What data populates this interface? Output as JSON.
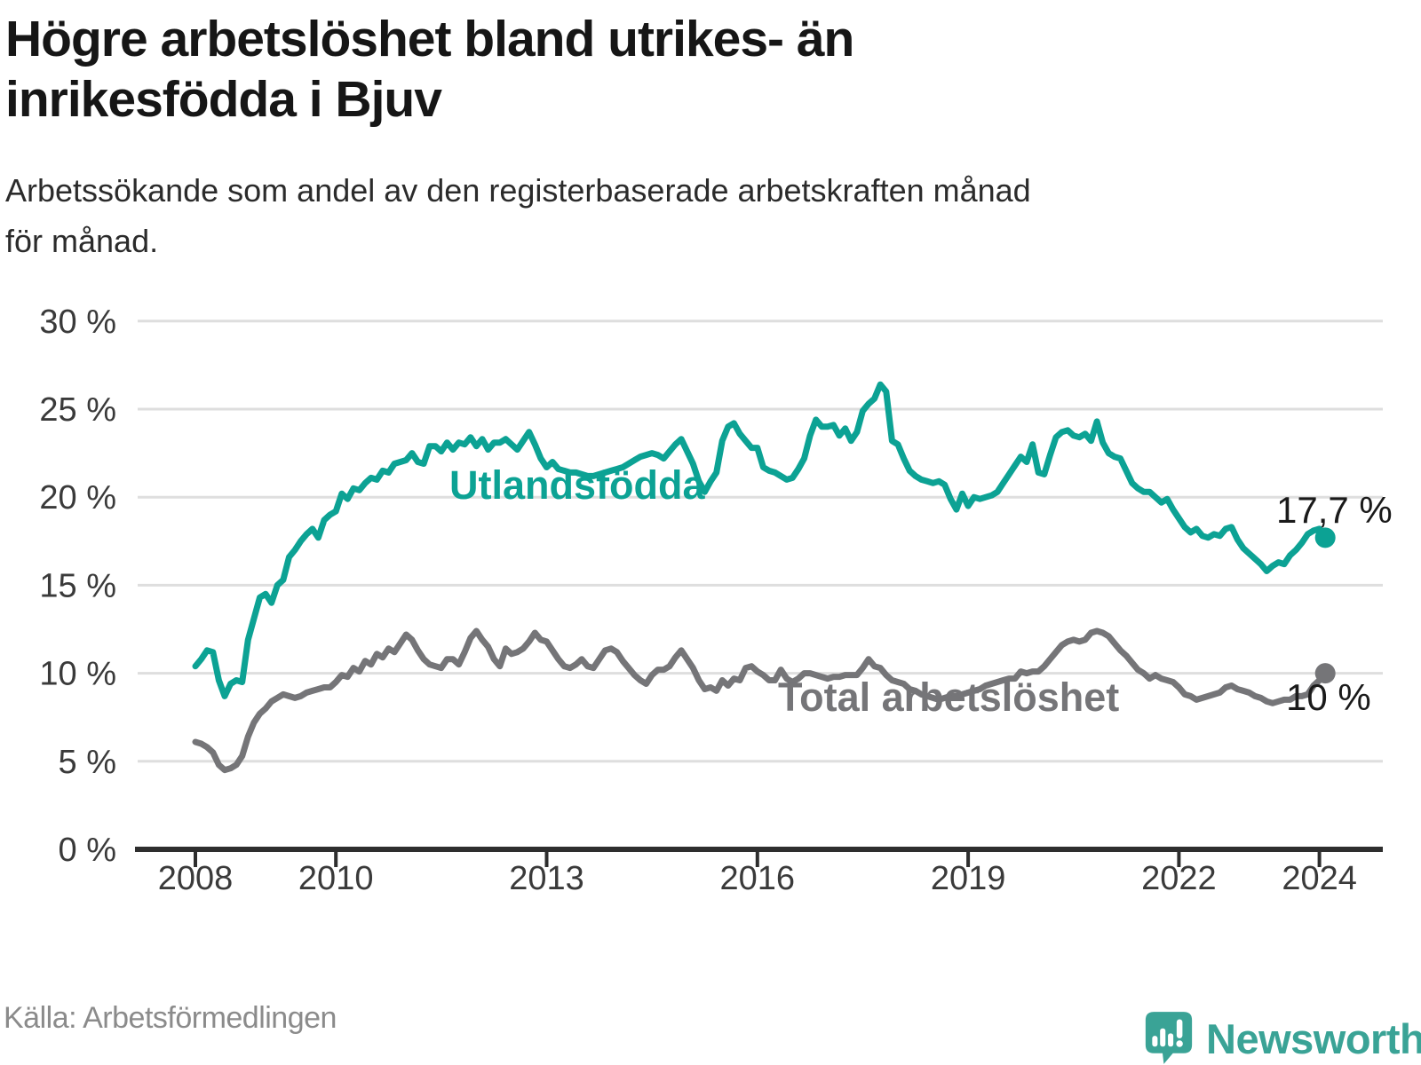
{
  "title": {
    "full": "Högre arbetslöshet bland utrikes- än inrikesfödda i Bjuv",
    "lines": [
      "Högre arbetslöshet bland utrikes- än",
      "inrikesfödda i Bjuv"
    ]
  },
  "subtitle": {
    "full": "Arbetssökande som andel av den registerbaserade arbetskraften månad för månad.",
    "lines": [
      "Arbetssökande som andel av den registerbaserade arbetskraften månad",
      "för månad."
    ]
  },
  "source": "Källa: Arbetsförmedlingen",
  "brand": {
    "name": "Newsworthy",
    "icon": "newsworthy-bubble-barchart-icon",
    "color": "#3aa396"
  },
  "colors": {
    "series_utlandsfodda": "#0ca294",
    "series_total": "#757578",
    "gridline": "#dedede",
    "axis": "#2e2e2e",
    "tick_label": "#3a3a3a",
    "value_label": "#1a1a1a",
    "title_text": "#161616",
    "source_text": "#8b8b8b"
  },
  "chart_data": {
    "type": "line",
    "title": "Högre arbetslöshet bland utrikes- än inrikesfödda i Bjuv",
    "xlabel": "",
    "ylabel": "Arbetssökande som andel av den registerbaserade arbetskraften",
    "x_unit": "month",
    "x_range": [
      "2008-01",
      "2024-02"
    ],
    "ylim": [
      0,
      30
    ],
    "grid": true,
    "legend_position": "inline",
    "y_ticks": [
      {
        "value": 0,
        "label": "0 %"
      },
      {
        "value": 5,
        "label": "5 %"
      },
      {
        "value": 10,
        "label": "10 %"
      },
      {
        "value": 15,
        "label": "15 %"
      },
      {
        "value": 20,
        "label": "20 %"
      },
      {
        "value": 25,
        "label": "25 %"
      },
      {
        "value": 30,
        "label": "30 %"
      }
    ],
    "x_ticks": [
      {
        "year": 2008,
        "label": "2008"
      },
      {
        "year": 2010,
        "label": "2010"
      },
      {
        "year": 2013,
        "label": "2013"
      },
      {
        "year": 2016,
        "label": "2016"
      },
      {
        "year": 2019,
        "label": "2019"
      },
      {
        "year": 2022,
        "label": "2022"
      },
      {
        "year": 2024,
        "label": "2024"
      }
    ],
    "series": [
      {
        "name": "Utlandsfödda",
        "end_label": "17,7 %",
        "end_value": 17.7,
        "color": "#0ca294",
        "values": [
          10.4,
          10.8,
          11.3,
          11.2,
          9.6,
          8.7,
          9.4,
          9.6,
          9.5,
          11.9,
          13.1,
          14.3,
          14.5,
          14.0,
          15.0,
          15.3,
          16.6,
          17.0,
          17.5,
          17.9,
          18.2,
          17.7,
          18.7,
          19.0,
          19.2,
          20.2,
          19.9,
          20.5,
          20.4,
          20.8,
          21.1,
          21.0,
          21.5,
          21.4,
          21.9,
          22.0,
          22.1,
          22.5,
          22.0,
          21.9,
          22.9,
          22.9,
          22.6,
          23.1,
          22.7,
          23.1,
          23.0,
          23.4,
          22.9,
          23.3,
          22.7,
          23.1,
          23.1,
          23.3,
          23.0,
          22.7,
          23.2,
          23.7,
          23.0,
          22.2,
          21.7,
          22.0,
          21.6,
          21.5,
          21.4,
          21.4,
          21.3,
          21.2,
          21.2,
          21.3,
          21.4,
          21.5,
          21.6,
          21.7,
          21.9,
          22.1,
          22.3,
          22.4,
          22.5,
          22.4,
          22.2,
          22.6,
          23.0,
          23.3,
          22.6,
          21.9,
          20.9,
          20.3,
          20.9,
          21.4,
          23.2,
          24.0,
          24.2,
          23.6,
          23.2,
          22.8,
          22.8,
          21.7,
          21.5,
          21.4,
          21.2,
          21.0,
          21.1,
          21.6,
          22.2,
          23.5,
          24.4,
          24.0,
          24.0,
          24.1,
          23.5,
          23.9,
          23.2,
          23.7,
          24.9,
          25.3,
          25.6,
          26.4,
          26.0,
          23.2,
          23.0,
          22.2,
          21.5,
          21.2,
          21.0,
          20.9,
          20.8,
          20.9,
          20.7,
          19.9,
          19.3,
          20.2,
          19.5,
          20.0,
          19.9,
          20.0,
          20.1,
          20.3,
          20.8,
          21.3,
          21.8,
          22.3,
          22.0,
          23.0,
          21.4,
          21.3,
          22.4,
          23.4,
          23.7,
          23.8,
          23.5,
          23.4,
          23.6,
          23.2,
          24.3,
          23.1,
          22.5,
          22.3,
          22.2,
          21.5,
          20.8,
          20.5,
          20.3,
          20.3,
          20.0,
          19.7,
          19.9,
          19.3,
          18.8,
          18.3,
          18.0,
          18.2,
          17.8,
          17.7,
          17.9,
          17.8,
          18.2,
          18.3,
          17.6,
          17.1,
          16.8,
          16.5,
          16.2,
          15.8,
          16.1,
          16.3,
          16.2,
          16.7,
          17.0,
          17.4,
          17.9,
          18.1,
          18.2,
          17.7
        ]
      },
      {
        "name": "Total arbetslöshet",
        "end_label": "10 %",
        "end_value": 10.0,
        "color": "#757578",
        "values": [
          6.1,
          6.0,
          5.8,
          5.5,
          4.8,
          4.5,
          4.6,
          4.8,
          5.3,
          6.4,
          7.2,
          7.7,
          8.0,
          8.4,
          8.6,
          8.8,
          8.7,
          8.6,
          8.7,
          8.9,
          9.0,
          9.1,
          9.2,
          9.2,
          9.5,
          9.9,
          9.8,
          10.3,
          10.1,
          10.7,
          10.5,
          11.1,
          10.9,
          11.4,
          11.2,
          11.7,
          12.2,
          11.9,
          11.3,
          10.8,
          10.5,
          10.4,
          10.3,
          10.8,
          10.8,
          10.5,
          11.2,
          12.0,
          12.4,
          11.9,
          11.5,
          10.8,
          10.4,
          11.4,
          11.1,
          11.2,
          11.4,
          11.8,
          12.3,
          11.9,
          11.8,
          11.3,
          10.8,
          10.4,
          10.3,
          10.5,
          10.8,
          10.4,
          10.3,
          10.8,
          11.3,
          11.4,
          11.2,
          10.7,
          10.3,
          9.9,
          9.6,
          9.4,
          9.9,
          10.2,
          10.2,
          10.4,
          10.9,
          11.3,
          10.8,
          10.3,
          9.6,
          9.1,
          9.2,
          9.0,
          9.6,
          9.3,
          9.7,
          9.6,
          10.3,
          10.4,
          10.1,
          9.9,
          9.6,
          9.6,
          10.2,
          9.7,
          9.5,
          9.7,
          10.0,
          10.0,
          9.9,
          9.8,
          9.7,
          9.8,
          9.8,
          9.9,
          9.9,
          9.9,
          10.3,
          10.8,
          10.4,
          10.3,
          9.9,
          9.6,
          9.5,
          9.4,
          9.1,
          9.0,
          8.8,
          8.7,
          8.6,
          8.5,
          8.6,
          8.7,
          8.7,
          8.8,
          8.9,
          9.0,
          9.1,
          9.3,
          9.4,
          9.5,
          9.6,
          9.7,
          9.7,
          10.1,
          10.0,
          10.1,
          10.1,
          10.4,
          10.8,
          11.2,
          11.6,
          11.8,
          11.9,
          11.8,
          11.9,
          12.3,
          12.4,
          12.3,
          12.1,
          11.7,
          11.3,
          11.0,
          10.6,
          10.2,
          10.0,
          9.7,
          9.9,
          9.7,
          9.6,
          9.5,
          9.2,
          8.8,
          8.7,
          8.5,
          8.6,
          8.7,
          8.8,
          8.9,
          9.2,
          9.3,
          9.1,
          9.0,
          8.9,
          8.7,
          8.6,
          8.4,
          8.3,
          8.4,
          8.5,
          8.5,
          8.7,
          8.7,
          8.8,
          9.3,
          9.6,
          10.0
        ]
      }
    ]
  }
}
